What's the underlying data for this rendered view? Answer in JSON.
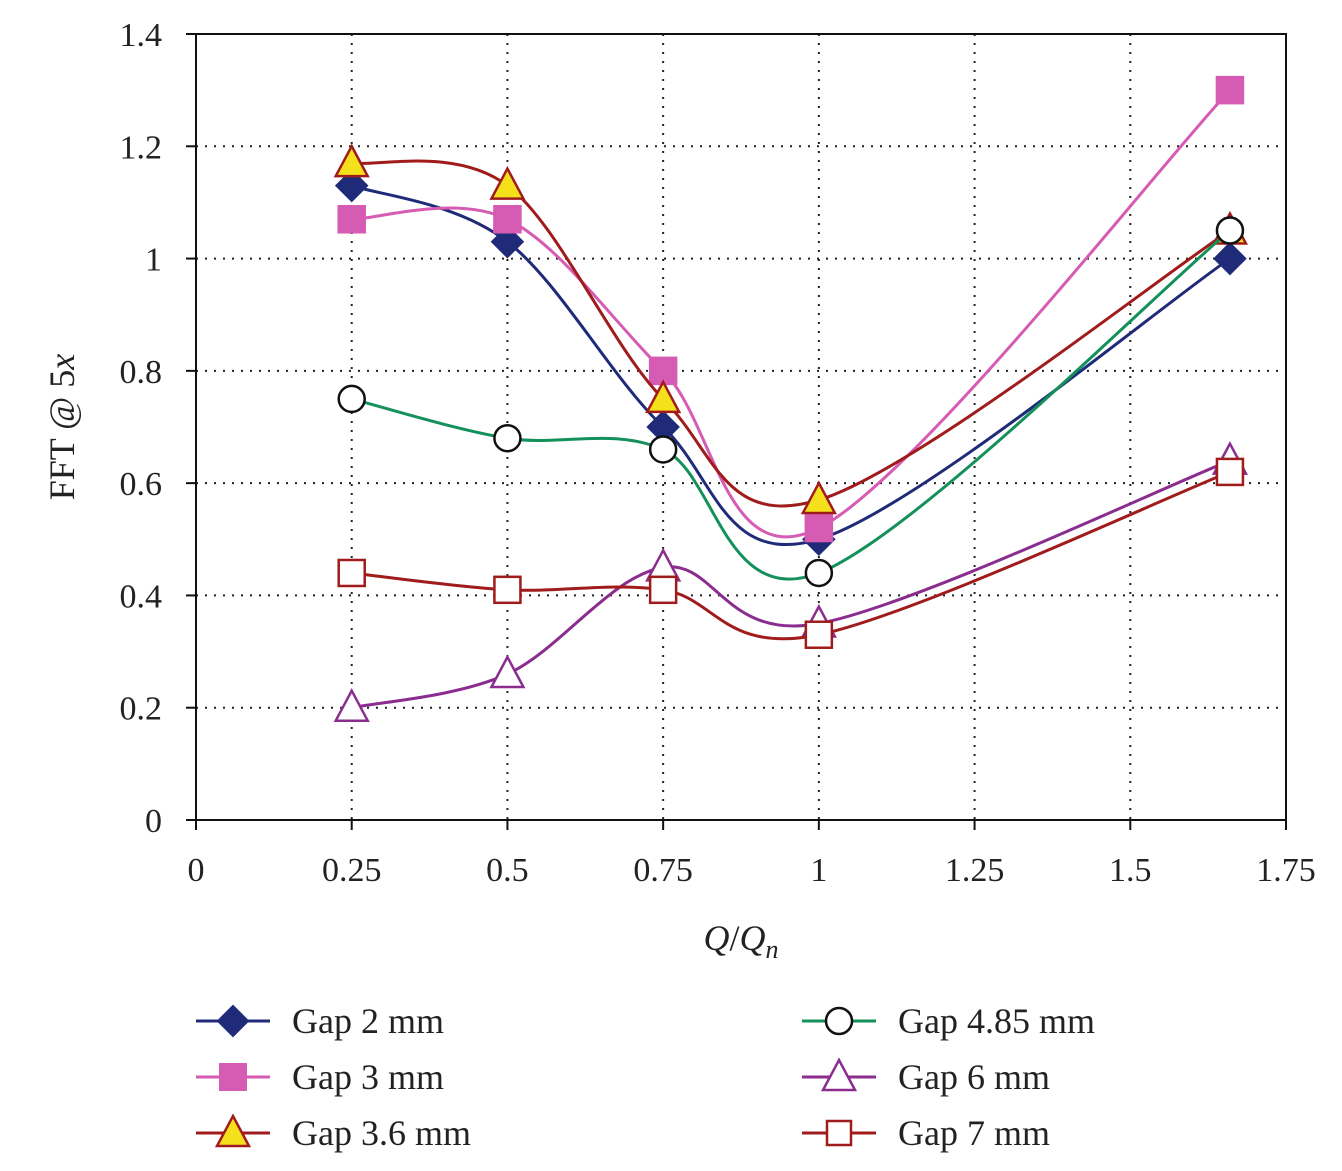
{
  "chart_data": {
    "type": "line",
    "xlabel_parts": {
      "q1": "Q",
      "slash": "/",
      "q2": "Q",
      "sub": "n"
    },
    "ylabel": "FFT @ 5",
    "ylabel_var": "x",
    "xlim": [
      0,
      1.75
    ],
    "ylim": [
      0,
      1.4
    ],
    "x_ticks": [
      0,
      0.25,
      0.5,
      0.75,
      1,
      1.25,
      1.5,
      1.75
    ],
    "x_tick_labels": [
      "0",
      "0.25",
      "0.5",
      "0.75",
      "1",
      "1.25",
      "1.5",
      "1.75"
    ],
    "y_ticks": [
      0,
      0.2,
      0.4,
      0.6,
      0.8,
      1,
      1.2,
      1.4
    ],
    "y_tick_labels": [
      "0",
      "0.2",
      "0.4",
      "0.6",
      "0.8",
      "1",
      "1.2",
      "1.4"
    ],
    "x": [
      0.25,
      0.5,
      0.75,
      1,
      1.66
    ],
    "grid": "dotted",
    "legend_position": "bottom",
    "series": [
      {
        "name": "Gap 2 mm",
        "values": [
          1.13,
          1.03,
          0.7,
          0.5,
          1.0
        ],
        "line_color": "#1f2a78",
        "marker": "diamond",
        "marker_fill": "#1f2a78",
        "marker_stroke": "#1f2a78"
      },
      {
        "name": "Gap 3 mm",
        "values": [
          1.07,
          1.07,
          0.8,
          0.52,
          1.3
        ],
        "line_color": "#d65bb3",
        "marker": "square",
        "marker_fill": "#d65bb3",
        "marker_stroke": "#d65bb3"
      },
      {
        "name": "Gap 3.6 mm",
        "values": [
          1.17,
          1.13,
          0.75,
          0.57,
          1.05
        ],
        "line_color": "#a01c1c",
        "marker": "triangle",
        "marker_fill": "#f5e11b",
        "marker_stroke": "#a01c1c"
      },
      {
        "name": "Gap 4.85 mm",
        "values": [
          0.75,
          0.68,
          0.66,
          0.44,
          1.05
        ],
        "line_color": "#14905a",
        "marker": "circle",
        "marker_fill": "#ffffff",
        "marker_stroke": "#111111"
      },
      {
        "name": "Gap 6 mm",
        "values": [
          0.2,
          0.26,
          0.45,
          0.35,
          0.64
        ],
        "line_color": "#8a2d8e",
        "marker": "triangle",
        "marker_fill": "#ffffff",
        "marker_stroke": "#8a2d8e"
      },
      {
        "name": "Gap 7 mm",
        "values": [
          0.44,
          0.41,
          0.41,
          0.33,
          0.62
        ],
        "line_color": "#a01c1c",
        "marker": "square",
        "marker_fill": "#ffffff",
        "marker_stroke": "#a01c1c"
      }
    ]
  }
}
